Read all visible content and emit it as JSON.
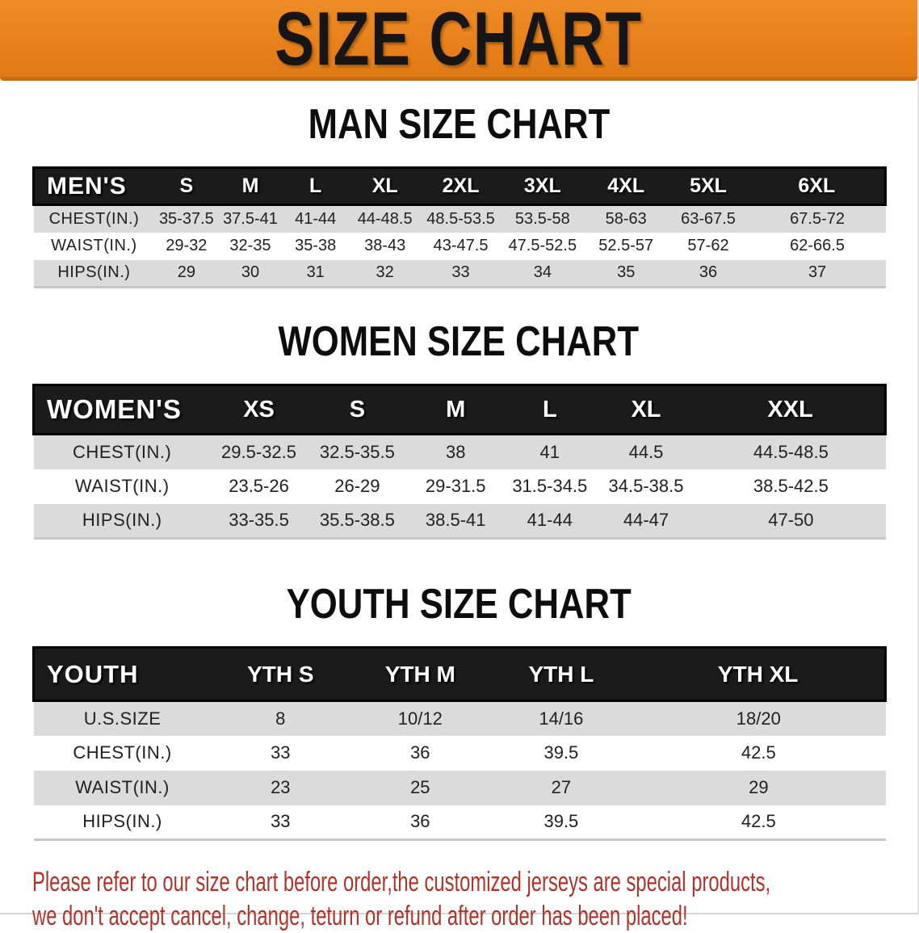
{
  "banner": {
    "title": "SIZE CHART",
    "bg_color": "#e8811b",
    "text_color": "#161616"
  },
  "sections": [
    {
      "id": "men",
      "heading": "MAN SIZE CHART",
      "header_label": "MEN'S",
      "columns": [
        "S",
        "M",
        "L",
        "XL",
        "2XL",
        "3XL",
        "4XL",
        "5XL",
        "6XL"
      ],
      "rows": [
        {
          "label": "CHEST(IN.)",
          "values": [
            "35-37.5",
            "37.5-41",
            "41-44",
            "44-48.5",
            "48.5-53.5",
            "53.5-58",
            "58-63",
            "63-67.5",
            "67.5-72"
          ]
        },
        {
          "label": "WAIST(IN.)",
          "values": [
            "29-32",
            "32-35",
            "35-38",
            "38-43",
            "43-47.5",
            "47.5-52.5",
            "52.5-57",
            "57-62",
            "62-66.5"
          ]
        },
        {
          "label": "HIPS(IN.)",
          "values": [
            "29",
            "30",
            "31",
            "32",
            "33",
            "34",
            "35",
            "36",
            "37"
          ]
        }
      ]
    },
    {
      "id": "women",
      "heading": "WOMEN SIZE CHART",
      "header_label": "WOMEN'S",
      "columns": [
        "XS",
        "S",
        "M",
        "L",
        "XL",
        "XXL"
      ],
      "rows": [
        {
          "label": "CHEST(IN.)",
          "values": [
            "29.5-32.5",
            "32.5-35.5",
            "38",
            "41",
            "44.5",
            "44.5-48.5"
          ]
        },
        {
          "label": "WAIST(IN.)",
          "values": [
            "23.5-26",
            "26-29",
            "29-31.5",
            "31.5-34.5",
            "34.5-38.5",
            "38.5-42.5"
          ]
        },
        {
          "label": "HIPS(IN.)",
          "values": [
            "33-35.5",
            "35.5-38.5",
            "38.5-41",
            "41-44",
            "44-47",
            "47-50"
          ]
        }
      ]
    },
    {
      "id": "youth",
      "heading": "YOUTH SIZE CHART",
      "header_label": "YOUTH",
      "columns": [
        "YTH S",
        "YTH M",
        "YTH L",
        "YTH XL"
      ],
      "rows": [
        {
          "label": "U.S.SIZE",
          "values": [
            "8",
            "10/12",
            "14/16",
            "18/20"
          ]
        },
        {
          "label": "CHEST(IN.)",
          "values": [
            "33",
            "36",
            "39.5",
            "42.5"
          ]
        },
        {
          "label": "WAIST(IN.)",
          "values": [
            "23",
            "25",
            "27",
            "29"
          ]
        },
        {
          "label": "HIPS(IN.)",
          "values": [
            "33",
            "36",
            "39.5",
            "42.5"
          ]
        }
      ]
    }
  ],
  "footer": {
    "line1": "Please refer to our size chart before order,the customized jerseys are special products,",
    "line2": "we don't accept cancel, change, teturn or refund after order has been placed!",
    "text_color": "#b0342b"
  }
}
